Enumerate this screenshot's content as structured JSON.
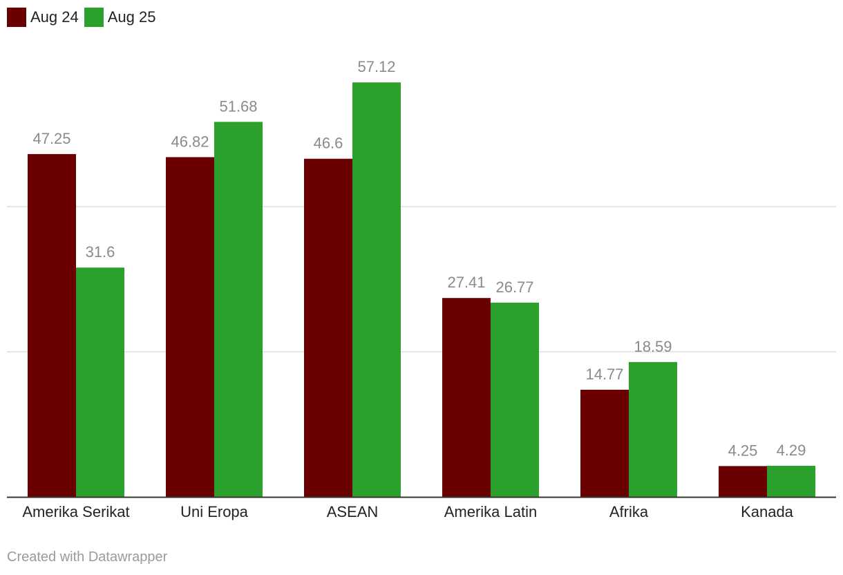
{
  "chart_data": {
    "type": "bar",
    "categories": [
      "Amerika Serikat",
      "Uni Eropa",
      "ASEAN",
      "Amerika Latin",
      "Afrika",
      "Kanada"
    ],
    "series": [
      {
        "name": "Aug 24",
        "color": "#6b0000",
        "values": [
          47.25,
          46.82,
          46.6,
          27.41,
          14.77,
          4.25
        ],
        "labels": [
          "47.25",
          "46.82",
          "46.6",
          "27.41",
          "14.77",
          "4.25"
        ]
      },
      {
        "name": "Aug 25",
        "color": "#2ca02c",
        "values": [
          31.6,
          51.68,
          57.12,
          26.77,
          18.59,
          4.29
        ],
        "labels": [
          "31.6",
          "51.68",
          "57.12",
          "26.77",
          "18.59",
          "4.29"
        ]
      }
    ],
    "ylim": [
      0,
      60
    ],
    "gridlines": [
      20,
      40
    ],
    "grid": true,
    "legend_position": "top-left",
    "data_labels": true
  },
  "credit": "Created with Datawrapper"
}
